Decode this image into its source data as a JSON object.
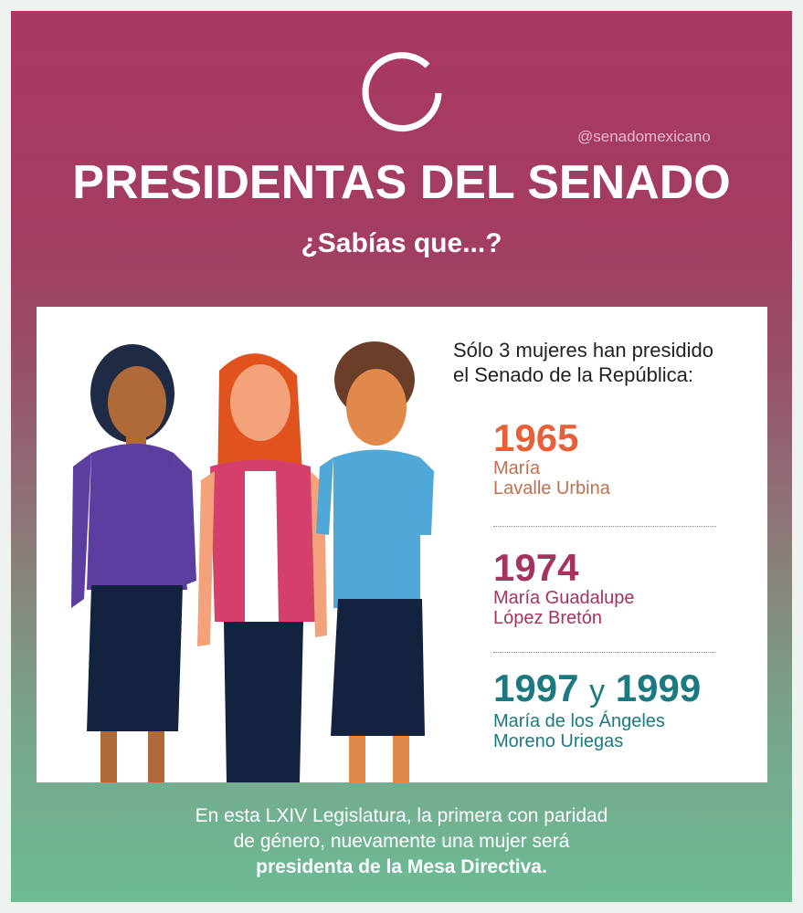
{
  "header": {
    "handle": "@senadomexicano",
    "title": "PRESIDENTAS DEL SENADO",
    "subtitle": "¿Sabías que...?"
  },
  "intro": {
    "line1": "Sólo 3 mujeres han presidido",
    "line2": "el Senado de la República:"
  },
  "entries": [
    {
      "year": "1965",
      "name1": "María",
      "name2": "Lavalle Urbina",
      "color": "#e8603a",
      "name_color": "#c0704e"
    },
    {
      "year": "1974",
      "name1": "María Guadalupe",
      "name2": "López Bretón",
      "color": "#a4335f",
      "name_color": "#a4335f"
    },
    {
      "year_a": "1997",
      "connector": "y",
      "year_b": "1999",
      "name1": "María de los Ángeles",
      "name2": "Moreno Uriegas",
      "color": "#1a7a80",
      "name_color": "#1a7a80"
    }
  ],
  "footer": {
    "line1": "En esta LXIV Legislatura, la primera con paridad",
    "line2": "de género, nuevamente una mujer será",
    "line3": "presidenta de la Mesa Directiva."
  }
}
